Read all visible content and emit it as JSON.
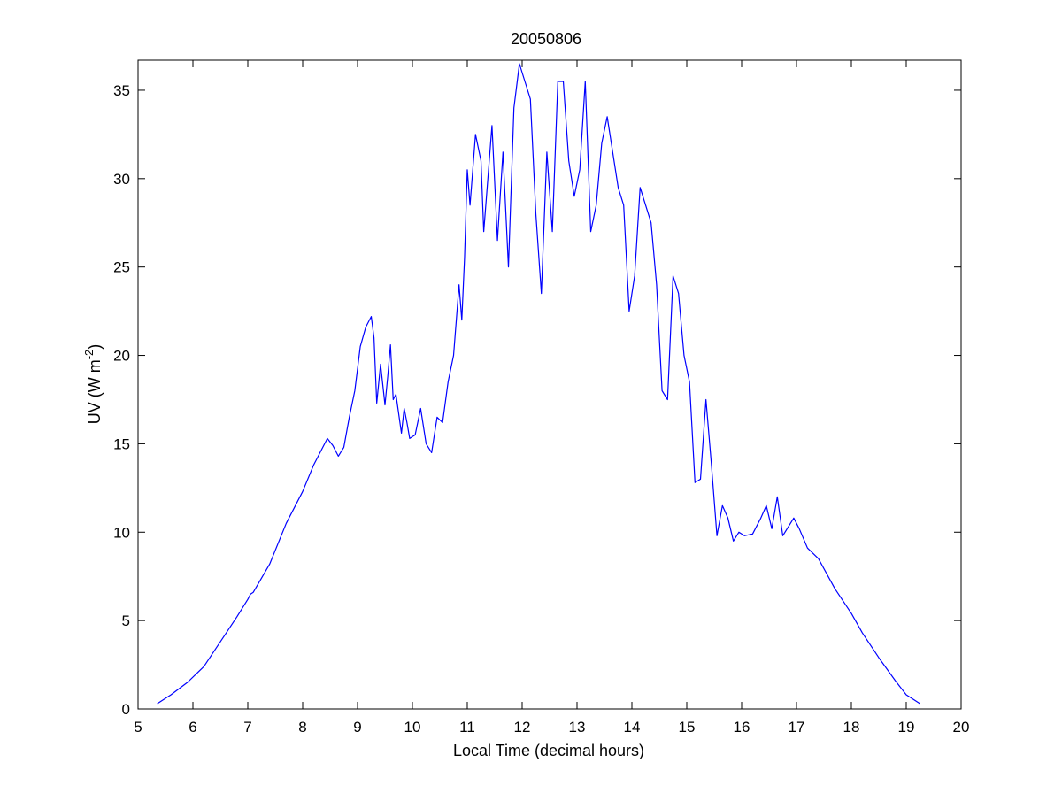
{
  "chart_data": {
    "type": "line",
    "title": "20050806",
    "xlabel": "Local Time (decimal hours)",
    "ylabel": {
      "prefix": "UV (W m",
      "sup": "-2",
      "suffix": ")"
    },
    "xlim": [
      5,
      20
    ],
    "ylim": [
      0,
      36.7
    ],
    "xticks": [
      5,
      6,
      7,
      8,
      9,
      10,
      11,
      12,
      13,
      14,
      15,
      16,
      17,
      18,
      19,
      20
    ],
    "yticks": [
      0,
      5,
      10,
      15,
      20,
      25,
      30,
      35
    ],
    "grid": false,
    "legend": "none",
    "colors": {
      "line": "#0000ff",
      "axes": "#000000",
      "background": "#ffffff"
    },
    "series": [
      {
        "x": [
          5.35,
          5.6,
          5.9,
          6.2,
          6.5,
          6.8,
          7.0,
          7.05,
          7.1,
          7.4,
          7.7,
          8.0,
          8.2,
          8.35,
          8.45,
          8.55,
          8.65,
          8.75,
          8.85,
          8.95,
          9.05,
          9.15,
          9.25,
          9.3,
          9.35,
          9.42,
          9.5,
          9.55,
          9.6,
          9.65,
          9.7,
          9.8,
          9.85,
          9.9,
          9.95,
          10.05,
          10.15,
          10.25,
          10.35,
          10.45,
          10.55,
          10.65,
          10.75,
          10.8,
          10.85,
          10.9,
          10.95,
          11.0,
          11.05,
          11.15,
          11.25,
          11.3,
          11.35,
          11.45,
          11.55,
          11.65,
          11.75,
          11.85,
          11.95,
          12.05,
          12.15,
          12.25,
          12.35,
          12.45,
          12.55,
          12.65,
          12.75,
          12.85,
          12.95,
          13.05,
          13.15,
          13.25,
          13.35,
          13.45,
          13.55,
          13.65,
          13.75,
          13.85,
          13.95,
          14.05,
          14.15,
          14.25,
          14.35,
          14.45,
          14.55,
          14.65,
          14.75,
          14.85,
          14.95,
          15.05,
          15.15,
          15.25,
          15.35,
          15.45,
          15.55,
          15.65,
          15.75,
          15.85,
          15.95,
          16.05,
          16.2,
          16.35,
          16.45,
          16.55,
          16.65,
          16.75,
          16.85,
          16.95,
          17.05,
          17.2,
          17.4,
          17.7,
          18.0,
          18.2,
          18.5,
          18.8,
          19.0,
          19.25
        ],
        "y": [
          0.3,
          0.8,
          1.5,
          2.4,
          3.8,
          5.2,
          6.2,
          6.5,
          6.6,
          8.2,
          10.5,
          12.3,
          13.8,
          14.7,
          15.3,
          14.9,
          14.3,
          14.8,
          16.5,
          18.0,
          20.5,
          21.6,
          22.2,
          21.0,
          17.3,
          19.5,
          17.2,
          18.8,
          20.6,
          17.5,
          17.8,
          15.6,
          17.0,
          16.2,
          15.3,
          15.5,
          17.0,
          15.0,
          14.5,
          16.5,
          16.2,
          18.5,
          20.0,
          22.0,
          24.0,
          22.0,
          25.5,
          30.5,
          28.5,
          32.5,
          31.0,
          27.0,
          29.0,
          33.0,
          26.5,
          31.5,
          25.0,
          34.0,
          36.5,
          35.5,
          34.5,
          28.0,
          23.5,
          31.5,
          27.0,
          35.5,
          35.5,
          31.0,
          29.0,
          30.5,
          35.5,
          27.0,
          28.5,
          32.0,
          33.5,
          31.5,
          29.5,
          28.5,
          22.5,
          24.5,
          29.5,
          28.5,
          27.5,
          24.0,
          18.0,
          17.5,
          24.5,
          23.5,
          20.0,
          18.5,
          12.8,
          13.0,
          17.5,
          13.8,
          9.8,
          11.5,
          10.8,
          9.5,
          10.0,
          9.8,
          9.9,
          10.8,
          11.5,
          10.2,
          12.0,
          9.8,
          10.3,
          10.8,
          10.2,
          9.1,
          8.5,
          6.8,
          5.4,
          4.3,
          2.9,
          1.6,
          0.8,
          0.3
        ]
      }
    ]
  }
}
